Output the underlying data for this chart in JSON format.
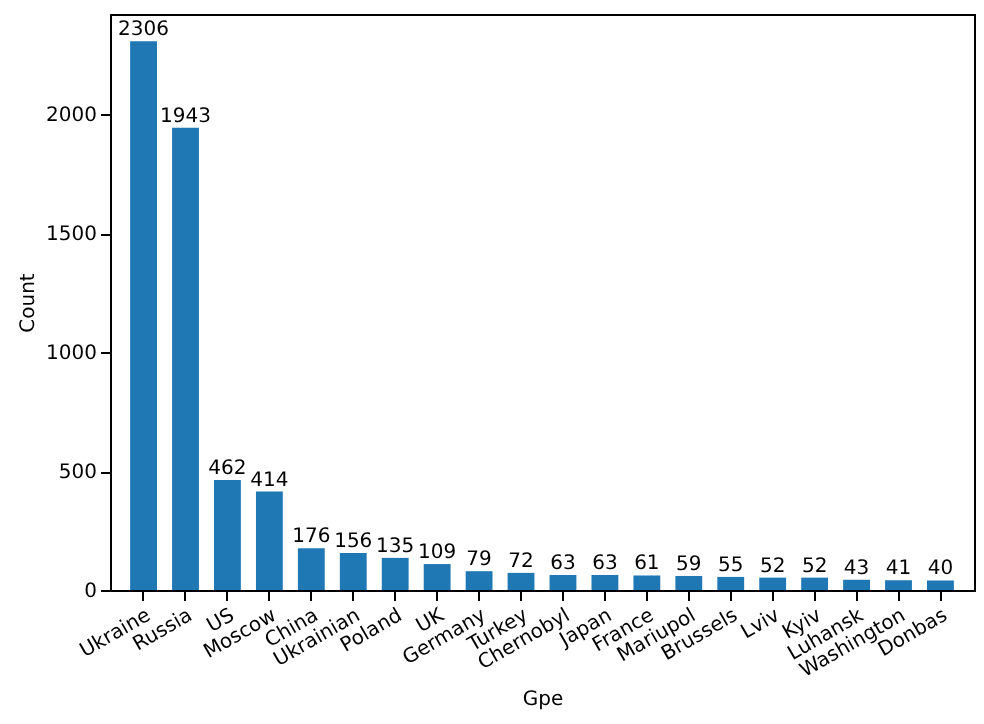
{
  "chart_data": {
    "type": "bar",
    "xlabel": "Gpe",
    "ylabel": "Count",
    "categories": [
      "Ukraine",
      "Russia",
      "US",
      "Moscow",
      "China",
      "Ukrainian",
      "Poland",
      "UK",
      "Germany",
      "Turkey",
      "Chernobyl",
      "Japan",
      "France",
      "Mariupol",
      "Brussels",
      "Lviv",
      "Kyiv",
      "Luhansk",
      "Washington",
      "Donbas"
    ],
    "values": [
      2306,
      1943,
      462,
      414,
      176,
      156,
      135,
      109,
      79,
      72,
      63,
      63,
      61,
      59,
      55,
      52,
      52,
      43,
      41,
      40
    ],
    "color": "#1f77b4",
    "ylim": [
      0,
      2421
    ],
    "yticks": [
      0,
      500,
      1000,
      1500,
      2000
    ],
    "grid": false,
    "data_labels": true
  }
}
